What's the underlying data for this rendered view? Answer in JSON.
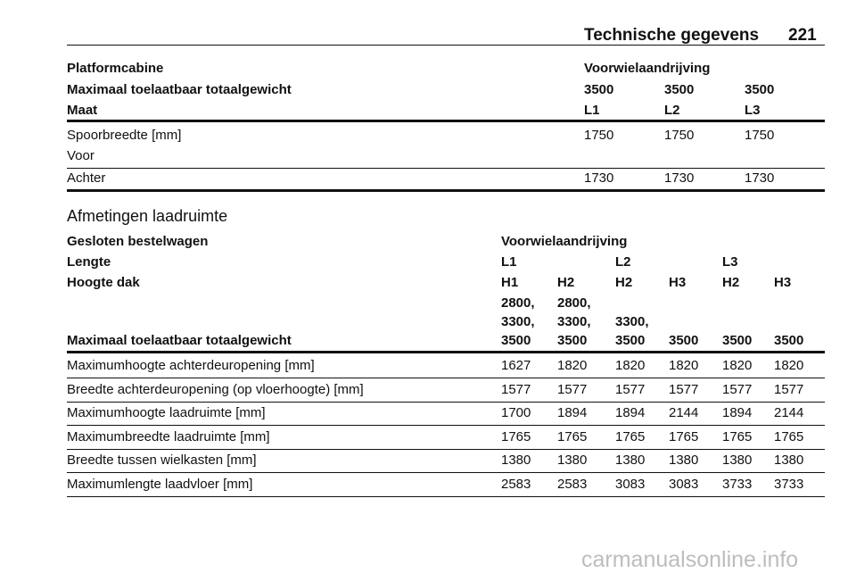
{
  "header": {
    "title": "Technische gegevens",
    "page": "221"
  },
  "table1": {
    "head": [
      {
        "label": "Platformcabine",
        "cells": [
          "Voorwielaandrijving"
        ]
      },
      {
        "label": "Maximaal toelaatbaar totaalgewicht",
        "cells": [
          "3500",
          "3500",
          "3500"
        ]
      },
      {
        "label": "Maat",
        "cells": [
          "L1",
          "L2",
          "L3"
        ]
      }
    ],
    "rows": [
      {
        "label": [
          "Spoorbreedte [mm]",
          "Voor"
        ],
        "cells": [
          "1750",
          "1750",
          "1750"
        ]
      },
      {
        "label": [
          "Achter"
        ],
        "cells": [
          "1730",
          "1730",
          "1730"
        ]
      }
    ]
  },
  "section_title": "Afmetingen laadruimte",
  "table2": {
    "head": [
      {
        "label": "Gesloten bestelwagen",
        "cells": [
          [
            "Voorwielaandrijving"
          ]
        ]
      },
      {
        "label": "Lengte",
        "cells": [
          [
            "L1"
          ],
          null,
          [
            "L2"
          ],
          null,
          [
            "L3"
          ],
          null
        ]
      },
      {
        "label": "Hoogte dak",
        "cells": [
          [
            "H1"
          ],
          [
            "H2"
          ],
          [
            "H2"
          ],
          [
            "H3"
          ],
          [
            "H2"
          ],
          [
            "H3"
          ]
        ]
      },
      {
        "label": "Maximaal toelaatbaar totaalgewicht",
        "cells": [
          [
            "2800,",
            "3300,",
            "3500"
          ],
          [
            "2800,",
            "3300,",
            "3500"
          ],
          [
            "3300,",
            "3500"
          ],
          [
            "3500"
          ],
          [
            "3500"
          ],
          [
            "3500"
          ]
        ]
      }
    ],
    "rows": [
      {
        "label": "Maximumhoogte achterdeuropening [mm]",
        "cells": [
          "1627",
          "1820",
          "1820",
          "1820",
          "1820",
          "1820"
        ]
      },
      {
        "label": "Breedte achterdeuropening (op vloerhoogte) [mm]",
        "cells": [
          "1577",
          "1577",
          "1577",
          "1577",
          "1577",
          "1577"
        ]
      },
      {
        "label": "Maximumhoogte laadruimte [mm]",
        "cells": [
          "1700",
          "1894",
          "1894",
          "2144",
          "1894",
          "2144"
        ]
      },
      {
        "label": "Maximumbreedte laadruimte [mm]",
        "cells": [
          "1765",
          "1765",
          "1765",
          "1765",
          "1765",
          "1765"
        ]
      },
      {
        "label": "Breedte tussen wielkasten [mm]",
        "cells": [
          "1380",
          "1380",
          "1380",
          "1380",
          "1380",
          "1380"
        ]
      },
      {
        "label": "Maximumlengte laadvloer [mm]",
        "cells": [
          "2583",
          "2583",
          "3083",
          "3083",
          "3733",
          "3733"
        ]
      }
    ]
  },
  "watermark": "carmanualsonline.info"
}
